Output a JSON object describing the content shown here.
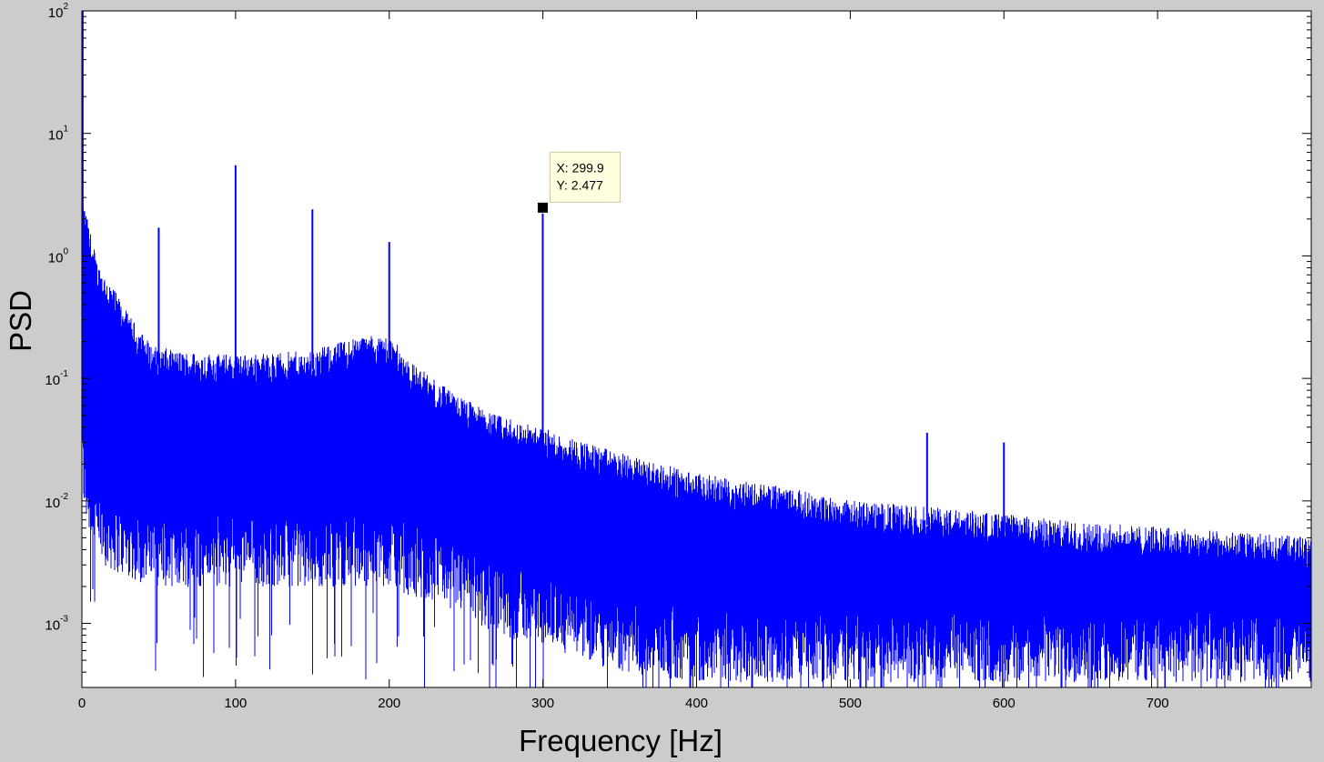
{
  "chart_data": {
    "type": "line",
    "xlabel": "Frequency [Hz]",
    "ylabel": "PSD",
    "xlim": [
      0,
      800
    ],
    "ylim": [
      0.0003,
      100
    ],
    "yscale": "log",
    "grid": false,
    "legend": "none",
    "x_ticks": [
      {
        "value": 0,
        "label": "0"
      },
      {
        "value": 100,
        "label": "100"
      },
      {
        "value": 200,
        "label": "200"
      },
      {
        "value": 300,
        "label": "300"
      },
      {
        "value": 400,
        "label": "400"
      },
      {
        "value": 500,
        "label": "500"
      },
      {
        "value": 600,
        "label": "600"
      },
      {
        "value": 700,
        "label": "700"
      }
    ],
    "y_ticks": [
      {
        "value": 0.001,
        "base": "10",
        "exp": "-3"
      },
      {
        "value": 0.01,
        "base": "10",
        "exp": "-2"
      },
      {
        "value": 0.1,
        "base": "10",
        "exp": "-1"
      },
      {
        "value": 1,
        "base": "10",
        "exp": "0"
      },
      {
        "value": 10,
        "base": "10",
        "exp": "1"
      },
      {
        "value": 100,
        "base": "10",
        "exp": "2"
      }
    ],
    "series": [
      {
        "color": "#0000ff",
        "envelope": {
          "x": [
            0,
            2,
            5,
            10,
            20,
            30,
            45,
            60,
            100,
            150,
            180,
            200,
            215,
            240,
            270,
            300,
            350,
            400,
            450,
            500,
            550,
            600,
            650,
            700,
            800
          ],
          "upper": [
            2.5,
            2.2,
            1.5,
            0.8,
            0.5,
            0.3,
            0.17,
            0.15,
            0.14,
            0.15,
            0.2,
            0.2,
            0.12,
            0.07,
            0.045,
            0.035,
            0.022,
            0.015,
            0.012,
            0.009,
            0.008,
            0.007,
            0.006,
            0.0055,
            0.0045
          ],
          "lower": [
            0.02,
            0.01,
            0.008,
            0.005,
            0.004,
            0.0035,
            0.003,
            0.003,
            0.003,
            0.003,
            0.003,
            0.003,
            0.0025,
            0.002,
            0.0012,
            0.001,
            0.0006,
            0.0005,
            0.0005,
            0.0005,
            0.0005,
            0.0005,
            0.0005,
            0.0005,
            0.0005
          ]
        },
        "peaks": [
          {
            "x": 0.5,
            "y": 100
          },
          {
            "x": 50,
            "y": 1.7
          },
          {
            "x": 100,
            "y": 5.5
          },
          {
            "x": 150,
            "y": 2.4
          },
          {
            "x": 200,
            "y": 1.3
          },
          {
            "x": 299.9,
            "y": 2.477
          },
          {
            "x": 550,
            "y": 0.036
          },
          {
            "x": 600,
            "y": 0.03
          }
        ]
      }
    ],
    "annotations": [
      {
        "x": 299.9,
        "y": 2.477,
        "line1": "X: 299.9",
        "line2": "Y: 2.477"
      }
    ]
  }
}
